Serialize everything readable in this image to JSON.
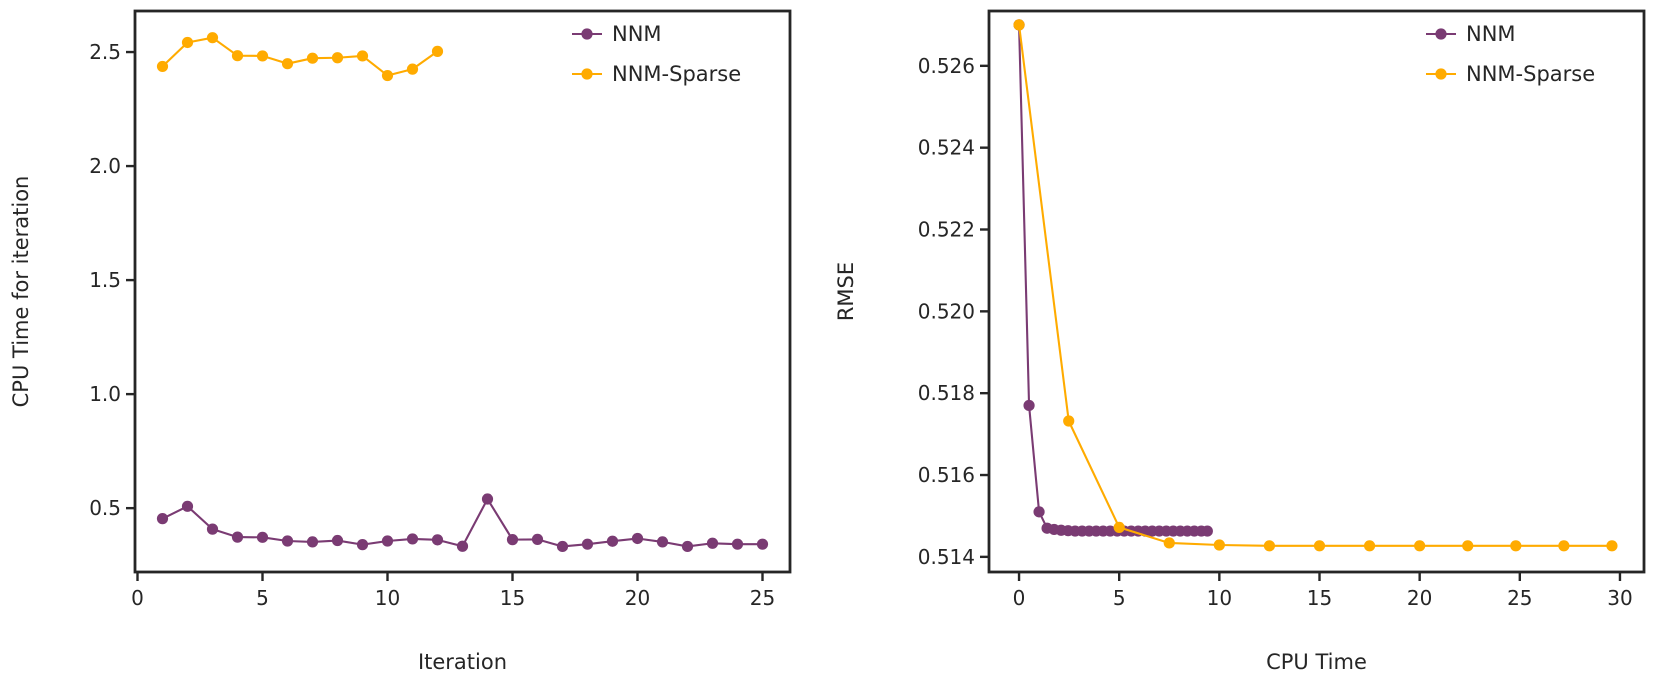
{
  "chart_data": [
    {
      "type": "line",
      "xlabel": "Iteration",
      "ylabel": "CPU Time for iteration",
      "xlim": [
        -0.1,
        26.1
      ],
      "ylim": [
        0.22,
        2.68
      ],
      "xticks": [
        0,
        5,
        10,
        15,
        20,
        25
      ],
      "xtick_labels": [
        "0",
        "5",
        "10",
        "15",
        "20",
        "25"
      ],
      "yticks": [
        0.5,
        1.0,
        1.5,
        2.0,
        2.5
      ],
      "ytick_labels": [
        "0.5",
        "1.0",
        "1.5",
        "2.0",
        "2.5"
      ],
      "grid": false,
      "legend": "top-right",
      "series": [
        {
          "name": "NNM",
          "color": "#7a3b73",
          "x": [
            1,
            2,
            3,
            4,
            5,
            6,
            7,
            8,
            9,
            10,
            11,
            12,
            13,
            14,
            15,
            16,
            17,
            18,
            19,
            20,
            21,
            22,
            23,
            24,
            25
          ],
          "y": [
            0.454,
            0.508,
            0.408,
            0.373,
            0.372,
            0.356,
            0.352,
            0.358,
            0.34,
            0.356,
            0.365,
            0.361,
            0.333,
            0.54,
            0.362,
            0.363,
            0.332,
            0.342,
            0.355,
            0.367,
            0.352,
            0.332,
            0.346,
            0.342,
            0.342
          ]
        },
        {
          "name": "NNM-Sparse",
          "color": "#ffab00",
          "x": [
            1,
            2,
            3,
            4,
            5,
            6,
            7,
            8,
            9,
            10,
            11,
            12
          ],
          "y": [
            2.437,
            2.542,
            2.563,
            2.484,
            2.483,
            2.449,
            2.473,
            2.475,
            2.483,
            2.397,
            2.425,
            2.503
          ]
        }
      ]
    },
    {
      "type": "line",
      "xlabel": "CPU Time",
      "ylabel": "RMSE",
      "xlim": [
        -1.5,
        31.2
      ],
      "ylim": [
        0.51363,
        0.52734
      ],
      "xticks": [
        0,
        5,
        10,
        15,
        20,
        25,
        30
      ],
      "xtick_labels": [
        "0",
        "5",
        "10",
        "15",
        "20",
        "25",
        "30"
      ],
      "yticks": [
        0.514,
        0.516,
        0.518,
        0.52,
        0.522,
        0.524,
        0.526
      ],
      "ytick_labels": [
        "0.514",
        "0.516",
        "0.518",
        "0.520",
        "0.522",
        "0.524",
        "0.526"
      ],
      "grid": false,
      "legend": "top-right",
      "series": [
        {
          "name": "NNM",
          "color": "#7a3b73",
          "x": [
            0.0,
            0.5,
            1.0,
            1.4,
            1.75,
            2.1,
            2.45,
            2.8,
            3.15,
            3.5,
            3.85,
            4.2,
            4.55,
            4.9,
            5.25,
            5.6,
            5.95,
            6.3,
            6.65,
            7.0,
            7.35,
            7.7,
            8.05,
            8.4,
            8.75,
            9.1,
            9.4
          ],
          "y": [
            0.527,
            0.5177,
            0.5151,
            0.5147,
            0.51467,
            0.51465,
            0.51464,
            0.51463,
            0.51463,
            0.51463,
            0.51463,
            0.51463,
            0.51463,
            0.51463,
            0.51463,
            0.51463,
            0.51463,
            0.51463,
            0.51463,
            0.51463,
            0.51463,
            0.51463,
            0.51463,
            0.51463,
            0.51463,
            0.51463,
            0.51463
          ]
        },
        {
          "name": "NNM-Sparse",
          "color": "#ffab00",
          "x": [
            0.0,
            2.48,
            5.0,
            7.5,
            10.0,
            12.5,
            15.0,
            17.5,
            20.0,
            22.4,
            24.8,
            27.2,
            29.6
          ],
          "y": [
            0.527,
            0.51732,
            0.51472,
            0.51434,
            0.51429,
            0.51427,
            0.51427,
            0.51427,
            0.51427,
            0.51427,
            0.51427,
            0.51427,
            0.51427
          ]
        }
      ]
    }
  ]
}
